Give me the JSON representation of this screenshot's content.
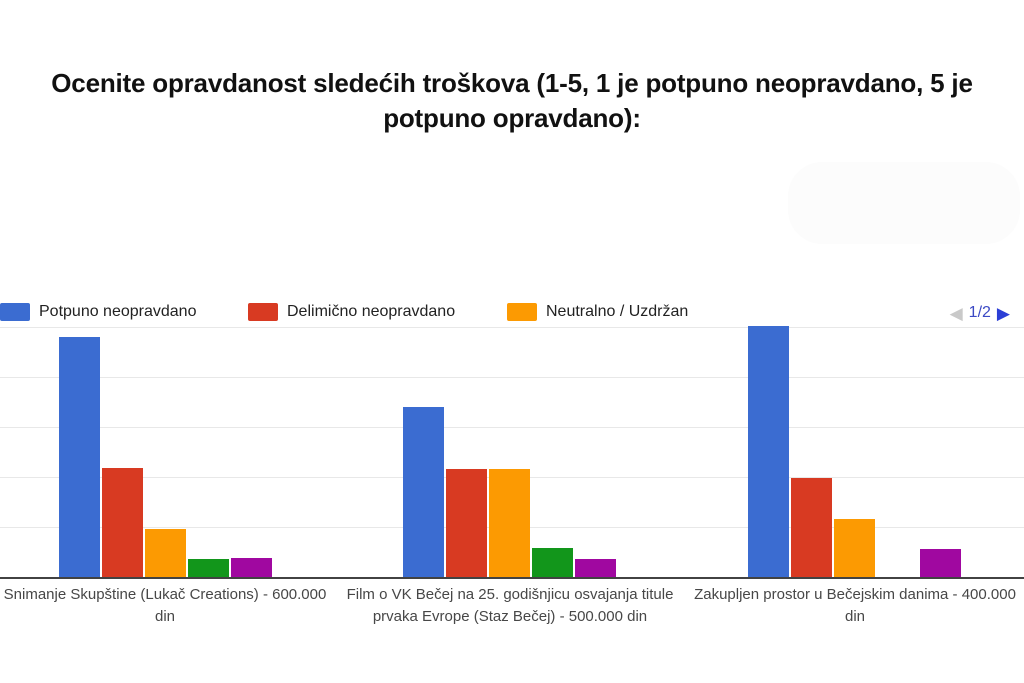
{
  "title": "Ocenite opravdanost sledećih troškova (1-5, 1 je potpuno neopravdano, 5 je potpuno opravdano):",
  "pager": {
    "current": "1/2",
    "prev_icon": "◀",
    "next_icon": "▶"
  },
  "legend": [
    {
      "label": "Potpuno neopravdano",
      "color": "#3b6cd1"
    },
    {
      "label": "Delimično neopravdano",
      "color": "#d83a22"
    },
    {
      "label": "Neutralno / Uzdržan",
      "color": "#fc9a02"
    }
  ],
  "chart_data": {
    "type": "bar",
    "title": "Ocenite opravdanost sledećih troškova (1-5, 1 je potpuno neopravdano, 5 je potpuno opravdano):",
    "categories": [
      "Snimanje Skupštine (Lukač Creations) - 600.000 din",
      "Film o VK Bečej na 25. godišnjicu osvajanja titule prvaka Evrope (Staz Bečej) - 500.000 din",
      "Zakupljen prostor u Bečejskim danima - 400.000 din"
    ],
    "series": [
      {
        "name": "Potpuno neopravdano",
        "color": "#3b6cd1",
        "values": [
          4.8,
          3.4,
          5.02
        ]
      },
      {
        "name": "Delimično neopravdano",
        "color": "#d83a22",
        "values": [
          2.18,
          2.16,
          1.98
        ]
      },
      {
        "name": "Neutralno / Uzdržan",
        "color": "#fc9a02",
        "values": [
          0.96,
          2.16,
          1.16
        ]
      },
      {
        "name": "",
        "color": "#12961b",
        "values": [
          0.36,
          0.58,
          0.0
        ]
      },
      {
        "name": "",
        "color": "#a008a0",
        "values": [
          0.37,
          0.36,
          0.56
        ]
      }
    ],
    "xlabel": "",
    "ylabel": "",
    "ylim": [
      0,
      5
    ],
    "gridline_step": 1,
    "grid": true,
    "legend_position": "top",
    "pagination": "1/2"
  }
}
